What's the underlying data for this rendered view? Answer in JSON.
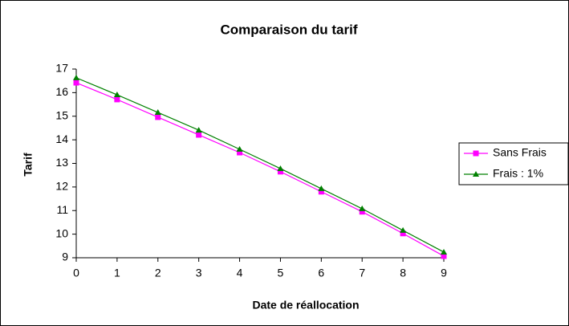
{
  "chart_data": {
    "type": "line",
    "title": "Comparaison du tarif",
    "x_label": "Date de réallocation",
    "y_label": "Tarif",
    "x": [
      0,
      1,
      2,
      3,
      4,
      5,
      6,
      7,
      8,
      9
    ],
    "series": [
      {
        "name": "Sans Frais",
        "color": "#ff00ff",
        "marker": "square",
        "values": [
          16.42,
          15.71,
          14.96,
          14.21,
          13.46,
          12.65,
          11.8,
          10.95,
          10.03,
          9.07
        ]
      },
      {
        "name": "Frais : 1%",
        "color": "#008000",
        "marker": "triangle",
        "values": [
          16.63,
          15.91,
          15.16,
          14.41,
          13.6,
          12.78,
          11.93,
          11.08,
          10.16,
          9.24
        ]
      }
    ],
    "xlim": [
      0,
      9
    ],
    "xticks": [
      0,
      1,
      2,
      3,
      4,
      5,
      6,
      7,
      8,
      9
    ],
    "ylim": [
      9,
      17
    ],
    "yticks": [
      9,
      10,
      11,
      12,
      13,
      14,
      15,
      16,
      17
    ],
    "grid": false,
    "legend": "right"
  }
}
